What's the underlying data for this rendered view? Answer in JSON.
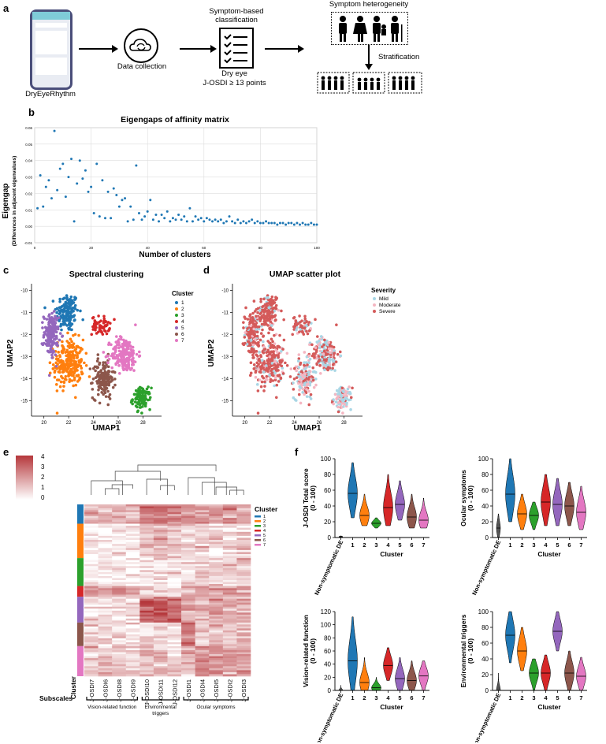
{
  "panels": {
    "a": "a",
    "b": "b",
    "c": "c",
    "d": "d",
    "e": "e",
    "f": "f"
  },
  "workflow": {
    "app_name": "DryEyeRhythm",
    "data_collection": "Data collection",
    "classification_title": "Symptom-based\nclassification",
    "dry_eye": "Dry eye",
    "criterion": "J-OSDI  ≥ 13 points",
    "heterogeneity": "Symptom heterogeneity",
    "stratification": "Stratification"
  },
  "colors": {
    "c1": "#1f77b4",
    "c2": "#ff7f0e",
    "c3": "#2ca02c",
    "c4": "#d62728",
    "c5": "#9467bd",
    "c6": "#8c564b",
    "c7": "#e377c2",
    "mild": "#a9d6e5",
    "moderate": "#f4b6c2",
    "severe": "#d45a5a"
  },
  "chart_data": [
    {
      "id": "b",
      "type": "scatter",
      "title": "Eigengaps of affinity matrix",
      "xlabel": "Number of clusters",
      "ylabel": "Eigengap",
      "ylabel2": "(Differences in adjacent eigenvalues)",
      "xlim": [
        0,
        100
      ],
      "ylim": [
        -0.01,
        0.06
      ],
      "xticks": [
        0,
        20,
        40,
        60,
        80,
        100
      ],
      "yticks": [
        -0.01,
        0.0,
        0.01,
        0.02,
        0.03,
        0.04,
        0.05,
        0.06
      ],
      "x": [
        1,
        2,
        3,
        4,
        5,
        6,
        7,
        8,
        9,
        10,
        11,
        12,
        13,
        14,
        15,
        16,
        17,
        18,
        19,
        20,
        21,
        22,
        23,
        24,
        25,
        26,
        27,
        28,
        29,
        30,
        31,
        32,
        33,
        34,
        35,
        36,
        37,
        38,
        39,
        40,
        41,
        42,
        43,
        44,
        45,
        46,
        47,
        48,
        49,
        50,
        51,
        52,
        53,
        54,
        55,
        56,
        57,
        58,
        59,
        60,
        61,
        62,
        63,
        64,
        65,
        66,
        67,
        68,
        69,
        70,
        71,
        72,
        73,
        74,
        75,
        76,
        77,
        78,
        79,
        80,
        81,
        82,
        83,
        84,
        85,
        86,
        87,
        88,
        89,
        90,
        91,
        92,
        93,
        94,
        95,
        96,
        97,
        98,
        99,
        100
      ],
      "y": [
        0.011,
        0.031,
        0.012,
        0.024,
        0.028,
        0.017,
        0.058,
        0.022,
        0.035,
        0.038,
        0.018,
        0.03,
        0.041,
        0.003,
        0.026,
        0.04,
        0.029,
        0.034,
        0.021,
        0.024,
        0.008,
        0.038,
        0.006,
        0.028,
        0.005,
        0.021,
        0.005,
        0.023,
        0.019,
        0.012,
        0.016,
        0.017,
        0.003,
        0.012,
        0.004,
        0.037,
        0.008,
        0.004,
        0.006,
        0.009,
        0.016,
        0.004,
        0.007,
        0.003,
        0.007,
        0.005,
        0.009,
        0.003,
        0.005,
        0.004,
        0.007,
        0.004,
        0.006,
        0.003,
        0.011,
        0.003,
        0.006,
        0.004,
        0.005,
        0.003,
        0.005,
        0.004,
        0.003,
        0.004,
        0.003,
        0.004,
        0.002,
        0.003,
        0.006,
        0.003,
        0.002,
        0.004,
        0.002,
        0.003,
        0.002,
        0.003,
        0.004,
        0.002,
        0.003,
        0.002,
        0.002,
        0.003,
        0.002,
        0.002,
        0.002,
        0.001,
        0.002,
        0.002,
        0.001,
        0.002,
        0.002,
        0.001,
        0.002,
        0.001,
        0.002,
        0.001,
        0.001,
        0.002,
        0.001,
        0.001
      ]
    },
    {
      "id": "c",
      "type": "scatter",
      "title": "Spectral clustering",
      "xlabel": "UMAP1",
      "ylabel": "UMAP2",
      "xlim": [
        19,
        29.5
      ],
      "ylim": [
        -15.7,
        -9.7
      ],
      "xticks": [
        20,
        22,
        24,
        26,
        28
      ],
      "yticks": [
        -10,
        -11,
        -12,
        -13,
        -14,
        -15
      ],
      "legend_title": "Cluster",
      "legend": [
        "1",
        "2",
        "3",
        "4",
        "5",
        "6",
        "7"
      ],
      "clusters": [
        {
          "name": "1",
          "cx": 21.9,
          "cy": -11.0,
          "sx": 0.75,
          "sy": 0.75
        },
        {
          "name": "2",
          "cx": 22.0,
          "cy": -13.3,
          "sx": 1.0,
          "sy": 0.9
        },
        {
          "name": "3",
          "cx": 27.9,
          "cy": -14.9,
          "sx": 0.6,
          "sy": 0.4
        },
        {
          "name": "4",
          "cx": 24.6,
          "cy": -11.6,
          "sx": 0.6,
          "sy": 0.35
        },
        {
          "name": "5",
          "cx": 20.6,
          "cy": -12.0,
          "sx": 0.5,
          "sy": 0.8
        },
        {
          "name": "6",
          "cx": 24.8,
          "cy": -14.0,
          "sx": 0.7,
          "sy": 0.75
        },
        {
          "name": "7",
          "cx": 26.5,
          "cy": -12.9,
          "sx": 0.9,
          "sy": 0.65
        }
      ]
    },
    {
      "id": "d",
      "type": "scatter",
      "title": "UMAP scatter plot",
      "xlabel": "UMAP1",
      "ylabel": "UMAP2",
      "xlim": [
        19,
        29.5
      ],
      "ylim": [
        -15.7,
        -9.7
      ],
      "xticks": [
        20,
        22,
        24,
        26,
        28
      ],
      "yticks": [
        -10,
        -11,
        -12,
        -13,
        -14,
        -15
      ],
      "legend_title": "Severity",
      "legend": [
        "Mild",
        "Moderate",
        "Severe"
      ]
    },
    {
      "id": "e",
      "type": "heatmap",
      "colorbar": {
        "min": 0,
        "max": 4,
        "ticks": [
          "4",
          "3",
          "2",
          "1",
          "0"
        ]
      },
      "legend_title": "Cluster",
      "legend": [
        "1",
        "2",
        "3",
        "4",
        "5",
        "6",
        "7"
      ],
      "row_label": "Cluster",
      "columns": [
        "J-OSDI7",
        "J-OSDI6",
        "J-OSDI8",
        "J-OSDI9",
        "J-OSDI10",
        "J-OSDI11",
        "J-OSDI12",
        "J-OSDI1",
        "J-OSDI4",
        "J-OSDI5",
        "J-OSDI2",
        "J-OSDI3"
      ],
      "subscales_label": "Subscales",
      "subscales": [
        "Vision-related function",
        "Environmental\ntriggers",
        "Ocular symptoms"
      ],
      "row_fractions": [
        0.09,
        0.16,
        0.13,
        0.05,
        0.12,
        0.11,
        0.14
      ],
      "means": [
        [
          1.6,
          1.3,
          1.4,
          1.3,
          2.4,
          2.7,
          2.4,
          2.0,
          2.2,
          2.1,
          2.0,
          2.0
        ],
        [
          0.4,
          0.4,
          0.4,
          0.4,
          1.3,
          1.4,
          1.2,
          1.0,
          1.0,
          0.9,
          0.9,
          0.9
        ],
        [
          0.3,
          0.3,
          0.3,
          0.3,
          0.5,
          0.6,
          0.5,
          0.7,
          0.9,
          0.9,
          0.9,
          0.9
        ],
        [
          2.2,
          1.9,
          1.8,
          1.6,
          0.8,
          0.9,
          0.8,
          1.6,
          2.0,
          1.9,
          1.8,
          1.7
        ],
        [
          0.6,
          0.8,
          0.8,
          0.8,
          3.0,
          3.3,
          2.9,
          1.6,
          1.8,
          1.7,
          1.6,
          1.6
        ],
        [
          0.8,
          0.7,
          0.8,
          0.7,
          0.6,
          0.7,
          0.6,
          2.8,
          1.2,
          1.1,
          1.3,
          1.2
        ],
        [
          1.1,
          1.3,
          1.1,
          1.0,
          1.2,
          1.3,
          1.1,
          1.3,
          2.2,
          2.1,
          2.0,
          2.0
        ]
      ]
    },
    {
      "id": "f",
      "type": "violin",
      "categories": [
        "Non-symptomatic DE",
        "1",
        "2",
        "3",
        "4",
        "5",
        "6",
        "7"
      ],
      "xlabel": "Cluster",
      "plots": [
        {
          "ylabel": "J-OSDI Total score",
          "ylabel2": "(0 - 100)",
          "ylim": [
            0,
            100
          ],
          "yticks": [
            0,
            20,
            40,
            60,
            80,
            100
          ],
          "medians": [
            1,
            56,
            28,
            18,
            38,
            42,
            26,
            22
          ],
          "mins": [
            0,
            25,
            15,
            12,
            15,
            22,
            12,
            12
          ],
          "maxs": [
            2,
            95,
            55,
            25,
            80,
            72,
            55,
            50
          ]
        },
        {
          "ylabel": "Ocular symptoms",
          "ylabel2": "(0 - 100)",
          "ylim": [
            0,
            100
          ],
          "yticks": [
            0,
            20,
            40,
            60,
            80,
            100
          ],
          "medians": [
            12,
            55,
            30,
            28,
            45,
            42,
            40,
            32
          ],
          "mins": [
            0,
            20,
            10,
            10,
            15,
            15,
            15,
            10
          ],
          "maxs": [
            30,
            100,
            55,
            45,
            80,
            75,
            70,
            65
          ]
        },
        {
          "ylabel": "Vision-related function",
          "ylabel2": "(0 - 100)",
          "ylim": [
            0,
            120
          ],
          "yticks": [
            0,
            20,
            40,
            60,
            80,
            100,
            120
          ],
          "medians": [
            0,
            45,
            12,
            4,
            38,
            18,
            15,
            22
          ],
          "mins": [
            0,
            0,
            0,
            0,
            15,
            0,
            0,
            0
          ],
          "maxs": [
            8,
            112,
            50,
            20,
            65,
            50,
            45,
            45
          ]
        },
        {
          "ylabel": "Environmental triggers",
          "ylabel2": "(0 - 100)",
          "ylim": [
            0,
            100
          ],
          "yticks": [
            0,
            20,
            40,
            60,
            80,
            100
          ],
          "medians": [
            0,
            70,
            50,
            22,
            22,
            75,
            22,
            18
          ],
          "mins": [
            0,
            35,
            25,
            0,
            0,
            50,
            0,
            0
          ],
          "maxs": [
            22,
            100,
            80,
            40,
            45,
            100,
            50,
            42
          ]
        }
      ]
    }
  ]
}
